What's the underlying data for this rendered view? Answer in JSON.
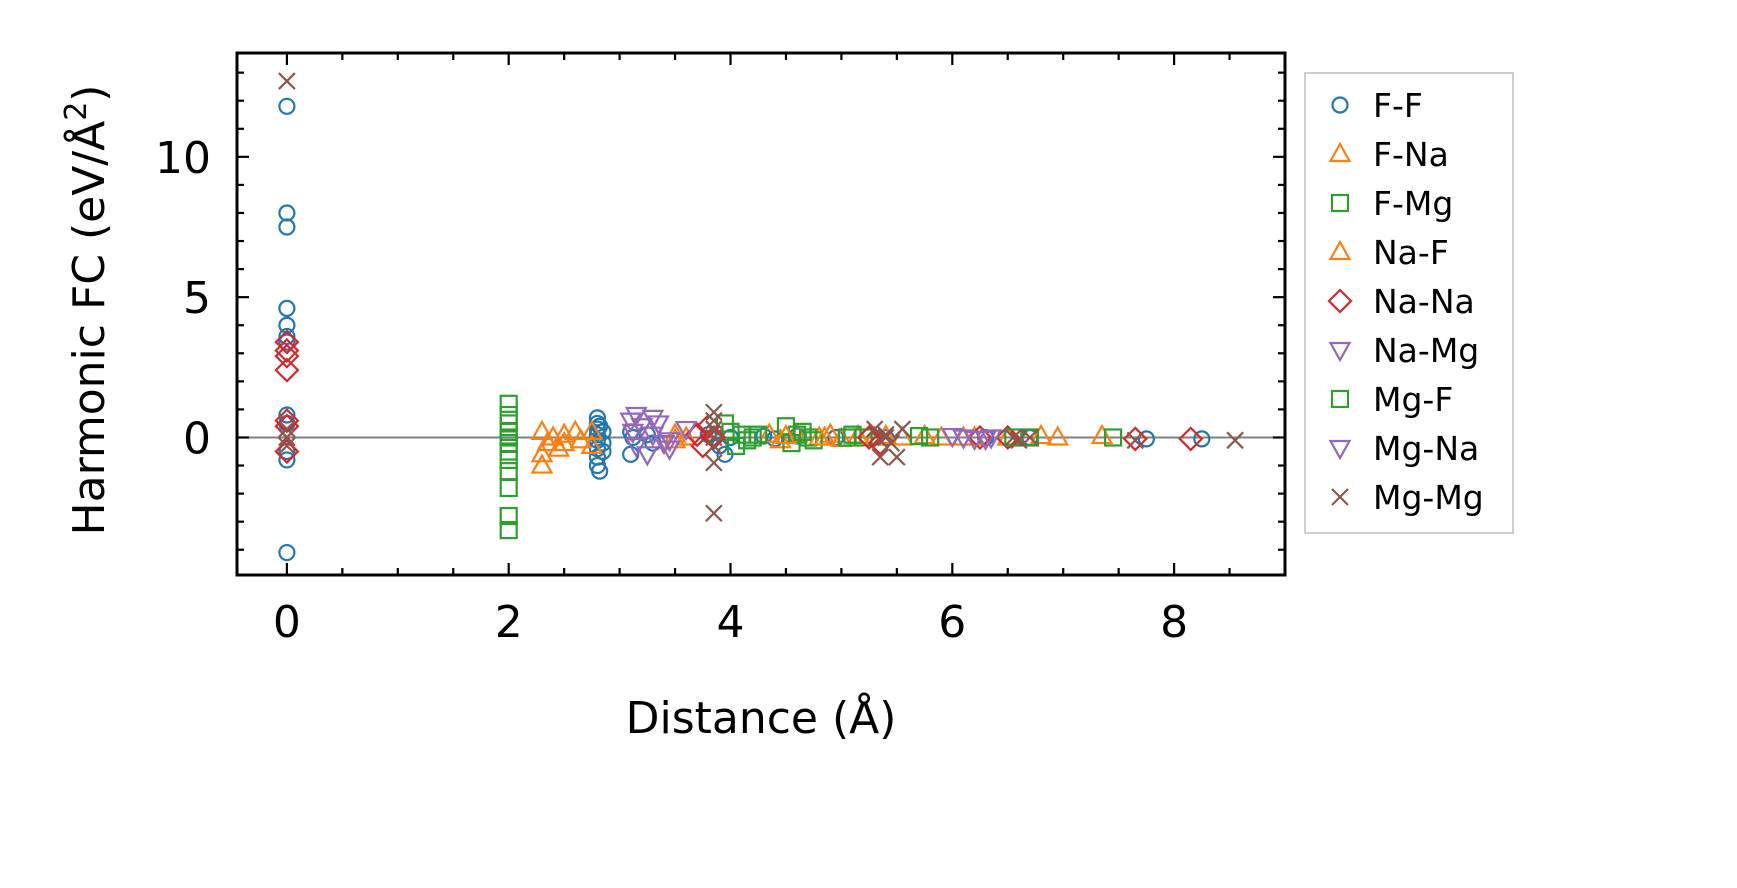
{
  "chart_data": {
    "type": "scatter",
    "xlabel": "Distance (Å)",
    "ylabel": "Harmonic FC (eV/Å",
    "ylabel_sup": "2",
    "ylabel_tail": ")",
    "xlim": [
      -0.45,
      9.0
    ],
    "ylim": [
      -4.9,
      13.7
    ],
    "xticks": [
      0,
      2,
      4,
      6,
      8
    ],
    "xtick_labels": [
      "0",
      "2",
      "4",
      "6",
      "8"
    ],
    "yticks": [
      0,
      5,
      10
    ],
    "ytick_labels": [
      "0",
      "5",
      "10"
    ],
    "x_minor_step": 0.5,
    "y_minor_step": 1,
    "reference_line_y": 0,
    "grid": false,
    "legend_position": "right, outside axes",
    "series": [
      {
        "name": "F-F",
        "marker": "circle",
        "color": "#1f77b4",
        "x": [
          0,
          0,
          0,
          0,
          0,
          0,
          0,
          0,
          0,
          0,
          0,
          0,
          2.8,
          2.8,
          2.8,
          2.8,
          2.8,
          2.8,
          2.8,
          2.8,
          2.82,
          2.82,
          2.85,
          2.85,
          2.85,
          3.1,
          3.1,
          3.12,
          3.25,
          3.3,
          3.8,
          3.9,
          3.95,
          4.0,
          4.3,
          4.4,
          4.6,
          4.95,
          5.4,
          6.3,
          6.7,
          7.75,
          8.25
        ],
        "y": [
          11.8,
          8.0,
          7.5,
          4.6,
          4.0,
          3.6,
          3.4,
          0.8,
          0.5,
          -0.5,
          -0.8,
          -4.1,
          0.7,
          0.5,
          0.3,
          0.1,
          -0.1,
          -0.4,
          -0.7,
          -1.0,
          -1.2,
          0.4,
          0.2,
          -0.2,
          -0.5,
          0.2,
          -0.6,
          0.0,
          0.1,
          -0.2,
          0.1,
          -0.3,
          -0.6,
          0.0,
          0.05,
          -0.05,
          0.05,
          0.0,
          0.0,
          0.0,
          0.0,
          -0.05,
          -0.05
        ]
      },
      {
        "name": "F-Na",
        "marker": "triangle-up",
        "color": "#ff7f0e",
        "x": [
          2.3,
          2.3,
          2.35,
          2.4,
          2.45,
          2.5,
          2.6,
          2.75,
          2.75,
          3.5,
          3.5,
          3.6,
          4.35,
          4.45,
          4.6,
          4.8,
          4.9,
          5.0,
          5.15,
          5.3,
          5.55,
          5.75,
          5.9,
          6.2,
          6.5,
          6.8,
          6.95,
          7.35
        ],
        "y": [
          0.2,
          -1.0,
          -0.2,
          0.0,
          -0.4,
          0.1,
          0.2,
          -0.3,
          0.2,
          0.1,
          -0.1,
          0.0,
          0.1,
          -0.1,
          0.1,
          0.0,
          0.1,
          -0.05,
          0.05,
          0.0,
          0.0,
          0.05,
          0.0,
          0.0,
          0.0,
          0.05,
          0.0,
          0.05
        ]
      },
      {
        "name": "F-Mg",
        "marker": "square",
        "color": "#2ca02c",
        "x": [
          2.0,
          2.0,
          2.0,
          2.0,
          2.0,
          2.0,
          2.0,
          2.0,
          2.0,
          2.0,
          2.0,
          2.0,
          3.95,
          4.0,
          4.05,
          4.1,
          4.15,
          4.2,
          4.5,
          4.55,
          4.6,
          4.7,
          4.75,
          5.1,
          5.2,
          5.7,
          5.8,
          6.7,
          7.45
        ],
        "y": [
          1.2,
          0.8,
          0.5,
          0.2,
          0.0,
          -0.2,
          -0.5,
          -0.8,
          -1.2,
          -1.8,
          -2.8,
          -3.3,
          0.5,
          0.2,
          -0.3,
          0.1,
          -0.1,
          0.0,
          0.4,
          -0.2,
          0.1,
          0.0,
          -0.1,
          0.1,
          0.0,
          0.05,
          0.0,
          0.0,
          0.0
        ]
      },
      {
        "name": "Na-F",
        "marker": "triangle-up",
        "color": "#ff7f0e",
        "x": [
          2.3,
          2.5,
          2.65,
          4.5,
          4.85,
          5.4,
          6.1
        ],
        "y": [
          -0.6,
          -0.2,
          -0.1,
          0.05,
          0.0,
          0.05,
          0.0
        ]
      },
      {
        "name": "Na-Na",
        "marker": "diamond",
        "color": "#d62728",
        "x": [
          0,
          0,
          0,
          0,
          0,
          0,
          0,
          3.7,
          3.75,
          3.8,
          3.85,
          5.25,
          5.35,
          6.25,
          6.5,
          7.65,
          8.15
        ],
        "y": [
          3.4,
          3.1,
          2.9,
          2.4,
          0.6,
          0.4,
          -0.5,
          0.1,
          -0.3,
          0.4,
          0.0,
          0.0,
          -0.2,
          0.0,
          0.0,
          -0.05,
          -0.05
        ]
      },
      {
        "name": "Na-Mg",
        "marker": "triangle-down",
        "color": "#9467bd",
        "x": [
          3.1,
          3.12,
          3.15,
          3.2,
          3.25,
          3.3,
          3.35,
          3.4,
          3.45,
          3.6,
          6.1,
          6.2,
          6.35
        ],
        "y": [
          0.6,
          0.2,
          -0.3,
          0.4,
          -0.6,
          0.1,
          0.5,
          -0.2,
          -0.1,
          0.3,
          0.0,
          -0.05,
          0.0
        ]
      },
      {
        "name": "Mg-F",
        "marker": "square",
        "color": "#2ca02c",
        "x": [
          4.25,
          4.65,
          5.05,
          6.55
        ],
        "y": [
          0.1,
          0.2,
          0.0,
          0.0
        ]
      },
      {
        "name": "Mg-Na",
        "marker": "triangle-down",
        "color": "#9467bd",
        "x": [
          3.15,
          3.3,
          3.45,
          6.0,
          6.3
        ],
        "y": [
          0.8,
          0.7,
          -0.4,
          0.05,
          -0.05
        ]
      },
      {
        "name": "Mg-Mg",
        "marker": "x",
        "color": "#8c564b",
        "x": [
          0,
          0,
          0,
          0,
          3.85,
          3.85,
          3.85,
          3.85,
          3.85,
          3.85,
          3.85,
          5.3,
          5.35,
          5.4,
          5.45,
          5.5,
          5.55,
          5.4,
          5.35,
          6.55,
          6.6,
          6.7,
          7.65,
          8.55
        ],
        "y": [
          12.7,
          0.3,
          0.0,
          -0.3,
          0.9,
          0.6,
          0.3,
          0.0,
          -0.3,
          -0.9,
          -2.7,
          0.3,
          -0.7,
          0.0,
          -0.2,
          -0.7,
          0.3,
          0.1,
          -0.1,
          0.0,
          -0.1,
          0.0,
          -0.1,
          -0.1
        ]
      }
    ]
  }
}
